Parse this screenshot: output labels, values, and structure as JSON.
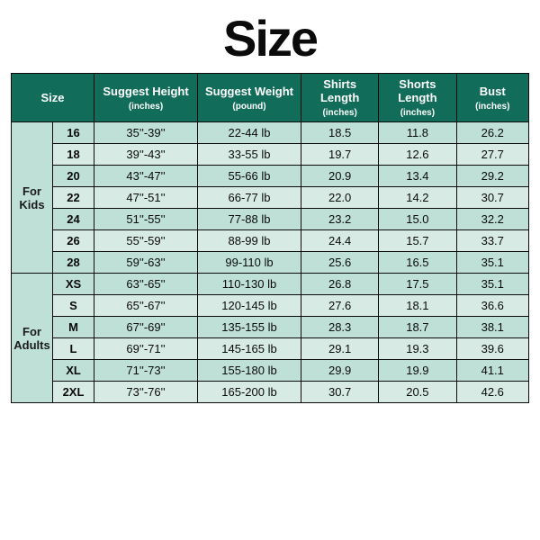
{
  "title": "Size",
  "title_fontsize": 56,
  "title_color": "#0b0b0b",
  "table": {
    "type": "table",
    "border_color": "#0a0a0a",
    "header_bg": "#116d59",
    "header_color": "#ffffff",
    "group_bg": "#bfe0d6",
    "group_color": "#1a1a1a",
    "row_alt_bg": [
      "#bfe0d6",
      "#d7ebe4"
    ],
    "cell_color": "#0a0a0a",
    "header_fontsize": 13,
    "sub_fontsize": 10,
    "cell_fontsize": 13,
    "group_fontsize": 13,
    "headers": {
      "size": "Size",
      "height": "Suggest Height",
      "height_sub": "(inches)",
      "weight": "Suggest Weight",
      "weight_sub": "(pound)",
      "shirts": "Shirts Length",
      "shirts_sub": "(inches)",
      "shorts": "Shorts Length",
      "shorts_sub": "(inches)",
      "bust": "Bust",
      "bust_sub": "(inches)"
    },
    "groups": [
      {
        "label": "For\nKids",
        "rows": [
          {
            "size": "16",
            "height": "35''-39''",
            "weight": "22-44 lb",
            "shirts": "18.5",
            "shorts": "11.8",
            "bust": "26.2"
          },
          {
            "size": "18",
            "height": "39''-43''",
            "weight": "33-55 lb",
            "shirts": "19.7",
            "shorts": "12.6",
            "bust": "27.7"
          },
          {
            "size": "20",
            "height": "43''-47''",
            "weight": "55-66 lb",
            "shirts": "20.9",
            "shorts": "13.4",
            "bust": "29.2"
          },
          {
            "size": "22",
            "height": "47''-51''",
            "weight": "66-77 lb",
            "shirts": "22.0",
            "shorts": "14.2",
            "bust": "30.7"
          },
          {
            "size": "24",
            "height": "51''-55''",
            "weight": "77-88 lb",
            "shirts": "23.2",
            "shorts": "15.0",
            "bust": "32.2"
          },
          {
            "size": "26",
            "height": "55''-59''",
            "weight": "88-99 lb",
            "shirts": "24.4",
            "shorts": "15.7",
            "bust": "33.7"
          },
          {
            "size": "28",
            "height": "59''-63''",
            "weight": "99-110 lb",
            "shirts": "25.6",
            "shorts": "16.5",
            "bust": "35.1"
          }
        ]
      },
      {
        "label": "For\nAdults",
        "rows": [
          {
            "size": "XS",
            "height": "63''-65''",
            "weight": "110-130 lb",
            "shirts": "26.8",
            "shorts": "17.5",
            "bust": "35.1"
          },
          {
            "size": "S",
            "height": "65''-67''",
            "weight": "120-145 lb",
            "shirts": "27.6",
            "shorts": "18.1",
            "bust": "36.6"
          },
          {
            "size": "M",
            "height": "67''-69''",
            "weight": "135-155 lb",
            "shirts": "28.3",
            "shorts": "18.7",
            "bust": "38.1"
          },
          {
            "size": "L",
            "height": "69''-71''",
            "weight": "145-165 lb",
            "shirts": "29.1",
            "shorts": "19.3",
            "bust": "39.6"
          },
          {
            "size": "XL",
            "height": "71''-73''",
            "weight": "155-180 lb",
            "shirts": "29.9",
            "shorts": "19.9",
            "bust": "41.1"
          },
          {
            "size": "2XL",
            "height": "73''-76''",
            "weight": "165-200 lb",
            "shirts": "30.7",
            "shorts": "20.5",
            "bust": "42.6"
          }
        ]
      }
    ]
  }
}
